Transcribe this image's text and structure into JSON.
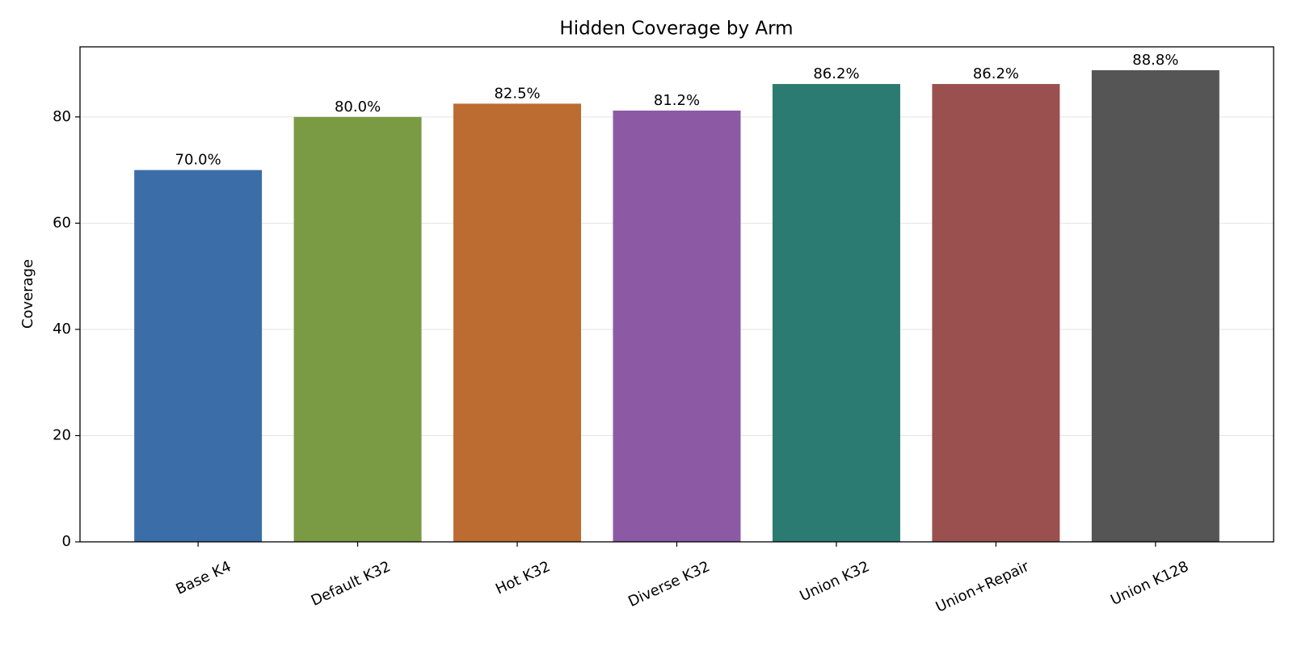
{
  "chart_data": {
    "type": "bar",
    "title": "Hidden Coverage by Arm",
    "y_label": "Coverage",
    "categories": [
      "Base K4",
      "Default K32",
      "Hot K32",
      "Diverse K32",
      "Union K32",
      "Union+Repair",
      "Union K128"
    ],
    "values": [
      70.0,
      80.0,
      82.5,
      81.2,
      86.2,
      86.2,
      88.8
    ],
    "value_labels": [
      "70.0%",
      "80.0%",
      "82.5%",
      "81.2%",
      "86.2%",
      "86.2%",
      "88.8%"
    ],
    "colors": [
      "#3b6ea8",
      "#7a9b43",
      "#bc6c31",
      "#8c5aa5",
      "#2b7b72",
      "#9a504e",
      "#555555"
    ],
    "ylim": [
      0,
      93.2
    ],
    "yticks": [
      0,
      20,
      40,
      60,
      80
    ],
    "grid": true
  }
}
